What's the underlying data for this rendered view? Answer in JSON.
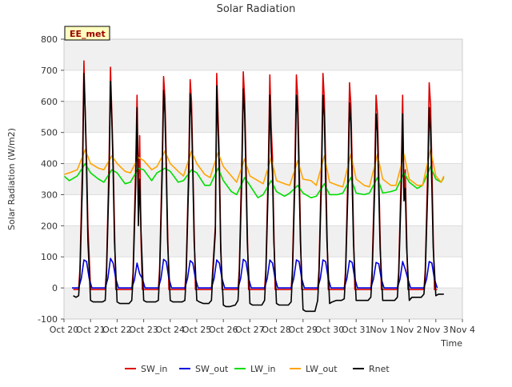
{
  "chart_data": {
    "type": "line",
    "title": "Solar Radiation",
    "xlabel": "Time",
    "ylabel": "Solar Radiation (W/m2)",
    "site_label": "EE_met",
    "ylim": [
      -100,
      800
    ],
    "yticks": [
      -100,
      0,
      100,
      200,
      300,
      400,
      500,
      600,
      700,
      800
    ],
    "xlim": [
      0,
      15
    ],
    "xticks": [
      {
        "t": 0,
        "label": "Oct 20"
      },
      {
        "t": 1,
        "label": "Oct 21"
      },
      {
        "t": 2,
        "label": "Oct 22"
      },
      {
        "t": 3,
        "label": "Oct 23"
      },
      {
        "t": 4,
        "label": "Oct 24"
      },
      {
        "t": 5,
        "label": "Oct 25"
      },
      {
        "t": 6,
        "label": "Oct 26"
      },
      {
        "t": 7,
        "label": "Oct 27"
      },
      {
        "t": 8,
        "label": "Oct 28"
      },
      {
        "t": 9,
        "label": "Oct 29"
      },
      {
        "t": 10,
        "label": "Oct 30"
      },
      {
        "t": 11,
        "label": "Oct 31"
      },
      {
        "t": 12,
        "label": "Nov 1"
      },
      {
        "t": 13,
        "label": "Nov 2"
      },
      {
        "t": 14,
        "label": "Nov 3"
      },
      {
        "t": 15,
        "label": "Nov 4"
      }
    ],
    "grid": "horizontal bands",
    "legend_position": "bottom",
    "series": [
      {
        "name": "SW_in",
        "color": "#dd0000",
        "x": [
          0.35,
          0.55,
          0.6,
          0.7,
          0.75,
          0.8,
          0.85,
          0.9,
          1.0,
          1.1,
          1.15,
          1.55,
          1.6,
          1.7,
          1.75,
          1.8,
          1.85,
          1.9,
          1.95,
          2.05,
          2.15,
          2.55,
          2.6,
          2.7,
          2.75,
          2.8,
          2.85,
          2.9,
          2.95,
          3.05,
          3.15,
          3.55,
          3.6,
          3.7,
          3.75,
          3.8,
          3.85,
          3.9,
          3.95,
          4.05,
          4.15,
          4.55,
          4.6,
          4.7,
          4.75,
          4.8,
          4.85,
          4.9,
          4.95,
          5.05,
          5.15,
          5.55,
          5.6,
          5.7,
          5.75,
          5.8,
          5.85,
          5.9,
          5.95,
          6.05,
          6.15,
          6.55,
          6.6,
          6.7,
          6.75,
          6.8,
          6.85,
          6.9,
          6.95,
          7.05,
          7.15,
          7.55,
          7.6,
          7.7,
          7.75,
          7.8,
          7.85,
          7.9,
          7.95,
          8.05,
          8.15,
          8.55,
          8.6,
          8.7,
          8.75,
          8.8,
          8.85,
          8.9,
          8.95,
          9.05,
          9.15,
          9.55,
          9.6,
          9.7,
          9.75,
          9.8,
          9.85,
          9.9,
          9.95,
          10.05,
          10.15,
          10.55,
          10.6,
          10.7,
          10.75,
          10.8,
          10.85,
          10.9,
          10.95,
          11.05,
          11.15,
          11.55,
          11.6,
          11.7,
          11.75,
          11.8,
          11.85,
          11.9,
          11.95,
          12.05,
          12.15,
          12.55,
          12.6,
          12.7,
          12.75,
          12.8,
          12.85,
          12.9,
          12.95,
          13.05,
          13.15,
          13.55,
          13.6,
          13.7,
          13.75,
          13.8,
          13.85,
          13.9,
          13.95,
          14.05
        ],
        "y": [
          -5,
          -5,
          60,
          420,
          730,
          550,
          420,
          200,
          -5,
          -5,
          -5,
          -5,
          60,
          420,
          710,
          560,
          420,
          200,
          -5,
          -5,
          -5,
          -5,
          50,
          390,
          620,
          310,
          490,
          150,
          -5,
          -5,
          -5,
          -5,
          60,
          420,
          680,
          610,
          420,
          190,
          -5,
          -5,
          -5,
          -5,
          60,
          410,
          670,
          600,
          410,
          190,
          -5,
          -5,
          -5,
          -5,
          60,
          200,
          690,
          550,
          420,
          150,
          -5,
          -5,
          -5,
          -5,
          60,
          430,
          695,
          610,
          420,
          190,
          -5,
          -5,
          -5,
          -5,
          60,
          420,
          685,
          520,
          420,
          190,
          -5,
          -5,
          -5,
          -5,
          60,
          420,
          685,
          610,
          420,
          190,
          -5,
          -5,
          -5,
          -5,
          60,
          420,
          690,
          610,
          410,
          190,
          -5,
          -5,
          -5,
          -5,
          55,
          400,
          660,
          590,
          400,
          180,
          -5,
          -5,
          -5,
          -5,
          55,
          380,
          620,
          560,
          380,
          170,
          -5,
          -5,
          -5,
          -5,
          50,
          380,
          620,
          300,
          380,
          170,
          -5,
          -5,
          -5,
          -5,
          55,
          400,
          660,
          590,
          400,
          170,
          -5,
          -5
        ]
      },
      {
        "name": "SW_out",
        "color": "#0000dd",
        "x": [
          0.3,
          0.55,
          0.65,
          0.75,
          0.85,
          0.95,
          1.05,
          1.55,
          1.65,
          1.75,
          1.85,
          1.95,
          2.05,
          2.55,
          2.65,
          2.75,
          2.85,
          2.95,
          3.05,
          3.55,
          3.65,
          3.75,
          3.85,
          3.95,
          4.05,
          4.55,
          4.65,
          4.75,
          4.85,
          4.95,
          5.05,
          5.55,
          5.65,
          5.75,
          5.85,
          5.95,
          6.05,
          6.55,
          6.65,
          6.75,
          6.85,
          6.95,
          7.05,
          7.55,
          7.65,
          7.75,
          7.85,
          7.95,
          8.05,
          8.55,
          8.65,
          8.75,
          8.85,
          8.95,
          9.05,
          9.55,
          9.65,
          9.75,
          9.85,
          9.95,
          10.05,
          10.55,
          10.65,
          10.75,
          10.85,
          10.95,
          11.05,
          11.55,
          11.65,
          11.75,
          11.85,
          11.95,
          12.05,
          12.55,
          12.65,
          12.75,
          12.85,
          12.95,
          13.05,
          13.55,
          13.65,
          13.75,
          13.85,
          13.95,
          14.05
        ],
        "y": [
          0,
          0,
          30,
          90,
          85,
          30,
          0,
          0,
          30,
          95,
          80,
          30,
          0,
          0,
          25,
          80,
          45,
          30,
          0,
          0,
          30,
          92,
          85,
          30,
          0,
          0,
          30,
          88,
          80,
          30,
          0,
          0,
          30,
          90,
          80,
          30,
          0,
          0,
          30,
          92,
          85,
          30,
          0,
          0,
          30,
          90,
          80,
          30,
          0,
          0,
          30,
          90,
          85,
          30,
          0,
          0,
          30,
          90,
          85,
          30,
          0,
          0,
          30,
          88,
          82,
          30,
          0,
          0,
          28,
          82,
          78,
          28,
          0,
          0,
          28,
          85,
          60,
          28,
          0,
          0,
          28,
          85,
          80,
          28,
          0
        ]
      },
      {
        "name": "LW_in",
        "color": "#00dd00",
        "x": [
          0.0,
          0.2,
          0.5,
          0.8,
          1.0,
          1.3,
          1.5,
          1.8,
          2.0,
          2.3,
          2.5,
          2.8,
          3.0,
          3.3,
          3.5,
          3.8,
          4.0,
          4.3,
          4.5,
          4.8,
          5.0,
          5.3,
          5.5,
          5.8,
          6.0,
          6.3,
          6.5,
          6.8,
          7.0,
          7.3,
          7.5,
          7.8,
          8.0,
          8.3,
          8.5,
          8.8,
          9.0,
          9.3,
          9.5,
          9.8,
          10.0,
          10.3,
          10.5,
          10.8,
          11.0,
          11.3,
          11.5,
          11.8,
          12.0,
          12.3,
          12.5,
          12.8,
          13.0,
          13.3,
          13.5,
          13.8,
          14.0,
          14.2,
          14.3
        ],
        "y": [
          360,
          345,
          360,
          400,
          370,
          350,
          340,
          380,
          370,
          335,
          340,
          385,
          380,
          345,
          370,
          385,
          375,
          340,
          345,
          380,
          370,
          330,
          330,
          385,
          345,
          310,
          300,
          355,
          330,
          290,
          300,
          345,
          310,
          295,
          305,
          330,
          305,
          290,
          295,
          335,
          300,
          300,
          305,
          355,
          305,
          300,
          305,
          355,
          305,
          310,
          315,
          370,
          340,
          320,
          330,
          390,
          350,
          340,
          355
        ]
      },
      {
        "name": "LW_out",
        "color": "#ffa500",
        "x": [
          0.0,
          0.2,
          0.5,
          0.8,
          1.0,
          1.3,
          1.5,
          1.8,
          2.0,
          2.3,
          2.5,
          2.8,
          3.0,
          3.3,
          3.5,
          3.8,
          4.0,
          4.3,
          4.5,
          4.8,
          5.0,
          5.3,
          5.5,
          5.8,
          6.0,
          6.3,
          6.5,
          6.8,
          7.0,
          7.3,
          7.5,
          7.8,
          8.0,
          8.3,
          8.5,
          8.8,
          9.0,
          9.3,
          9.5,
          9.8,
          10.0,
          10.3,
          10.5,
          10.8,
          11.0,
          11.3,
          11.5,
          11.8,
          12.0,
          12.3,
          12.5,
          12.8,
          13.0,
          13.3,
          13.5,
          13.8,
          14.0,
          14.2,
          14.3
        ],
        "y": [
          365,
          370,
          380,
          445,
          400,
          385,
          380,
          425,
          400,
          375,
          370,
          420,
          410,
          380,
          390,
          440,
          400,
          375,
          360,
          440,
          400,
          365,
          355,
          435,
          390,
          360,
          340,
          415,
          360,
          345,
          335,
          420,
          345,
          335,
          330,
          410,
          350,
          345,
          330,
          425,
          340,
          330,
          325,
          430,
          350,
          330,
          325,
          430,
          350,
          330,
          330,
          430,
          350,
          330,
          330,
          445,
          360,
          340,
          360
        ]
      },
      {
        "name": "Rnet",
        "color": "#000000",
        "x": [
          0.35,
          0.45,
          0.55,
          0.6,
          0.7,
          0.75,
          0.8,
          0.85,
          0.9,
          1.0,
          1.1,
          1.25,
          1.45,
          1.55,
          1.6,
          1.7,
          1.75,
          1.8,
          1.85,
          1.9,
          2.0,
          2.1,
          2.25,
          2.45,
          2.55,
          2.6,
          2.7,
          2.75,
          2.8,
          2.85,
          2.9,
          3.0,
          3.1,
          3.25,
          3.45,
          3.55,
          3.6,
          3.7,
          3.75,
          3.8,
          3.85,
          3.9,
          4.0,
          4.1,
          4.25,
          4.45,
          4.55,
          4.6,
          4.7,
          4.75,
          4.8,
          4.85,
          4.9,
          5.0,
          5.1,
          5.25,
          5.45,
          5.55,
          5.6,
          5.7,
          5.75,
          5.8,
          5.85,
          5.9,
          6.0,
          6.1,
          6.25,
          6.45,
          6.55,
          6.6,
          6.7,
          6.75,
          6.8,
          6.85,
          6.9,
          7.0,
          7.1,
          7.25,
          7.45,
          7.55,
          7.6,
          7.7,
          7.75,
          7.8,
          7.85,
          7.9,
          8.0,
          8.1,
          8.25,
          8.45,
          8.55,
          8.6,
          8.7,
          8.75,
          8.8,
          8.85,
          8.9,
          9.0,
          9.1,
          9.25,
          9.45,
          9.55,
          9.6,
          9.7,
          9.75,
          9.8,
          9.85,
          9.9,
          10.0,
          10.1,
          10.25,
          10.45,
          10.55,
          10.6,
          10.7,
          10.75,
          10.8,
          10.85,
          10.9,
          11.0,
          11.1,
          11.25,
          11.45,
          11.55,
          11.6,
          11.7,
          11.75,
          11.8,
          11.85,
          11.9,
          12.0,
          12.1,
          12.25,
          12.45,
          12.55,
          12.6,
          12.7,
          12.75,
          12.8,
          12.85,
          12.9,
          13.0,
          13.1,
          13.25,
          13.45,
          13.55,
          13.6,
          13.7,
          13.75,
          13.8,
          13.85,
          13.9,
          14.0,
          14.1,
          14.2,
          14.3
        ],
        "y": [
          -25,
          -30,
          -25,
          40,
          350,
          690,
          560,
          380,
          150,
          -40,
          -45,
          -45,
          -45,
          -40,
          40,
          360,
          665,
          540,
          380,
          150,
          -45,
          -50,
          -50,
          -50,
          -40,
          30,
          330,
          580,
          200,
          350,
          180,
          -40,
          -45,
          -45,
          -45,
          -40,
          40,
          370,
          635,
          560,
          380,
          150,
          -40,
          -45,
          -45,
          -45,
          -40,
          40,
          360,
          625,
          550,
          370,
          150,
          -40,
          -45,
          -50,
          -50,
          -40,
          40,
          180,
          650,
          500,
          370,
          120,
          -55,
          -60,
          -60,
          -55,
          -40,
          40,
          370,
          640,
          560,
          370,
          150,
          -50,
          -55,
          -55,
          -55,
          -40,
          40,
          360,
          620,
          440,
          370,
          150,
          -50,
          -55,
          -55,
          -55,
          -45,
          40,
          360,
          620,
          560,
          360,
          150,
          -70,
          -75,
          -75,
          -75,
          -40,
          40,
          360,
          620,
          550,
          350,
          150,
          -50,
          -45,
          -40,
          -40,
          -35,
          40,
          340,
          595,
          530,
          340,
          140,
          -40,
          -40,
          -40,
          -40,
          -30,
          35,
          320,
          560,
          500,
          320,
          130,
          -40,
          -40,
          -40,
          -40,
          -30,
          35,
          320,
          560,
          280,
          320,
          130,
          -40,
          -30,
          -30,
          -30,
          -20,
          35,
          330,
          580,
          500,
          330,
          130,
          -25,
          -20,
          -20,
          -20
        ]
      }
    ]
  }
}
